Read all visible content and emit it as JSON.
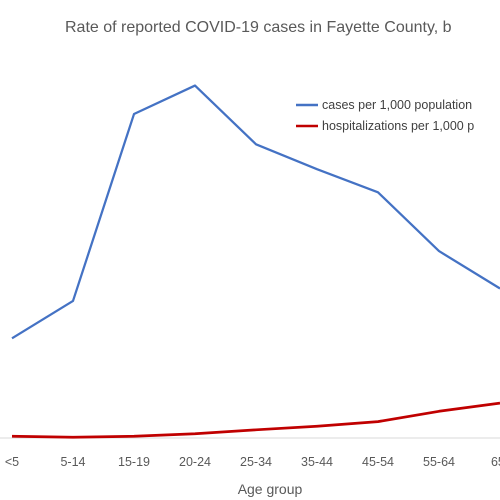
{
  "chart_data": {
    "type": "line",
    "title": "Rate of reported COVID-19 cases in Fayette County, b",
    "xlabel": "Age group",
    "ylabel": "",
    "categories": [
      "<5",
      "5-14",
      "15-19",
      "20-24",
      "25-34",
      "35-44",
      "45-54",
      "55-64",
      "65-"
    ],
    "ylim": [
      0,
      100
    ],
    "grid": false,
    "legend_position": "top-right",
    "series": [
      {
        "name": "cases per 1,000 population",
        "color": "#4472c4",
        "values": [
          28,
          38.5,
          91,
          99,
          82.5,
          75.5,
          69,
          52.5,
          42
        ]
      },
      {
        "name": "hospitalizations per 1,000 p",
        "color": "#c00000",
        "values": [
          0.5,
          0.2,
          0.5,
          1.2,
          2.3,
          3.3,
          4.6,
          7.5,
          9.8
        ]
      }
    ]
  }
}
